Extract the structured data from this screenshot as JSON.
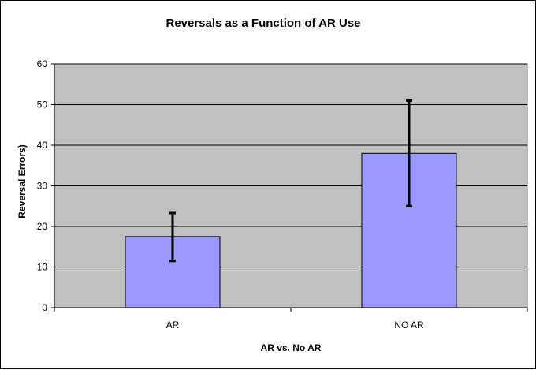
{
  "chart_data": {
    "type": "bar",
    "title": "Reversals as a Function of AR Use",
    "xlabel": "AR vs. No AR",
    "ylabel": "Reversal Errors)",
    "categories": [
      "AR",
      "NO AR"
    ],
    "values": [
      17.5,
      38
    ],
    "error_bars": [
      {
        "low": 11.5,
        "high": 23.3
      },
      {
        "low": 25,
        "high": 51
      }
    ],
    "ylim": [
      0,
      60
    ],
    "yticks": [
      "0",
      "10",
      "20",
      "30",
      "40",
      "50",
      "60"
    ],
    "grid": true,
    "legend": "none",
    "colors": {
      "bar": "#9999ff",
      "plot_background": "#c0c0c0",
      "grid": "#000000",
      "error_bar": "#000000"
    }
  }
}
